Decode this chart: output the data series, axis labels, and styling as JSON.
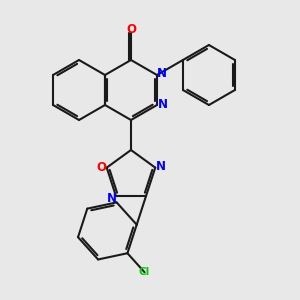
{
  "bg_color": "#e8e8e8",
  "bond_color": "#1a1a1a",
  "N_color": "#0000ff",
  "O_color": "#ff0000",
  "Cl_color": "#00cc00",
  "lw": 1.5,
  "fs": 8.5,
  "xlim": [
    -1.5,
    7.5
  ],
  "ylim": [
    -5.5,
    4.5
  ]
}
